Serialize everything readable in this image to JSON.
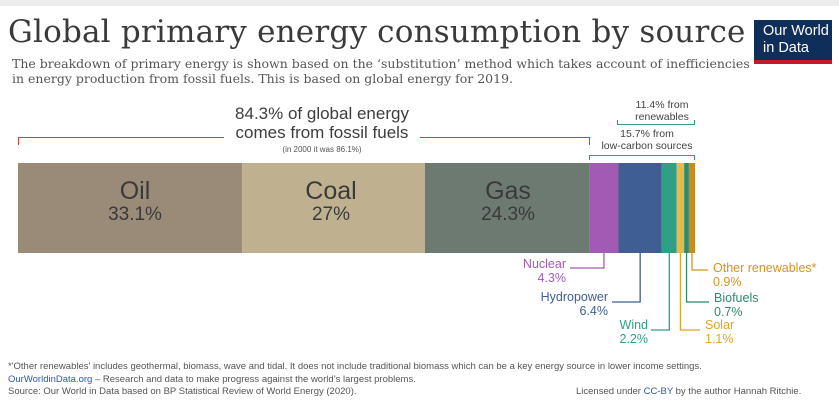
{
  "header": {
    "title": "Global primary energy consumption by source",
    "subtitle": "The breakdown of primary energy is shown based on the ‘substitution’ method which takes account of inefficiencies in energy production from fossil fuels. This is based on global energy for 2019.",
    "logo_line1": "Our World",
    "logo_line2": "in Data"
  },
  "annotations": {
    "fossil_line1": "84.3% of global energy",
    "fossil_line2": "comes from fossil fuels",
    "fossil_sub": "(in 2000 it was 86.1%)",
    "renewables_line1": "11.4% from",
    "renewables_line2": "renewables",
    "lowcarbon_line1": "15.7% from",
    "lowcarbon_line2": "low-carbon sources"
  },
  "colors": {
    "fossil_bracket": "#d93a3a",
    "green_bracket": "#3a9b78"
  },
  "chart_data": {
    "type": "bar",
    "orientation": "horizontal-stacked",
    "title": "Global primary energy consumption by source",
    "unit": "%",
    "year": 2019,
    "segments": [
      {
        "name": "Oil",
        "label": "Oil",
        "pct_text": "33.1%",
        "value": 33.1,
        "color": "#9a8a78",
        "label_color": "#3a3a3a"
      },
      {
        "name": "Coal",
        "label": "Coal",
        "pct_text": "27%",
        "value": 27.0,
        "color": "#bfb18f",
        "label_color": "#3a3a3a"
      },
      {
        "name": "Gas",
        "label": "Gas",
        "pct_text": "24.3%",
        "value": 24.3,
        "color": "#6c7a72",
        "label_color": "#3a3a3a"
      },
      {
        "name": "Nuclear",
        "label": "Nuclear",
        "pct_text": "4.3%",
        "value": 4.3,
        "color": "#a25bb5",
        "label_color": "#a25bb5"
      },
      {
        "name": "Hydropower",
        "label": "Hydropower",
        "pct_text": "6.4%",
        "value": 6.4,
        "color": "#3f5f92",
        "label_color": "#3f5f92"
      },
      {
        "name": "Wind",
        "label": "Wind",
        "pct_text": "2.2%",
        "value": 2.2,
        "color": "#2f9f86",
        "label_color": "#2f9f86"
      },
      {
        "name": "Solar",
        "label": "Solar",
        "pct_text": "1.1%",
        "value": 1.1,
        "color": "#e8b84a",
        "label_color": "#e0a525"
      },
      {
        "name": "Biofuels",
        "label": "Biofuels",
        "pct_text": "0.7%",
        "value": 0.7,
        "color": "#2f8a6a",
        "label_color": "#2f8a6a"
      },
      {
        "name": "Other renewables",
        "label": "Other renewables*",
        "pct_text": "0.9%",
        "value": 0.9,
        "color": "#c98a1e",
        "label_color": "#d79228"
      }
    ]
  },
  "footer": {
    "note": "*'Other renewables' includes geothermal, biomass, wave and tidal. It does not include traditional biomass which can be a key energy source in lower income settings.",
    "link_text": "OurWorldinData.org",
    "link_suffix": " – Research and data to make progress against the world’s largest problems.",
    "source": "Source: Our World in Data based on BP Statistical Review of World Energy (2020).",
    "license_prefix": "Licensed under ",
    "license_link": "CC-BY",
    "license_suffix": " by the author Hannah Ritchie."
  }
}
